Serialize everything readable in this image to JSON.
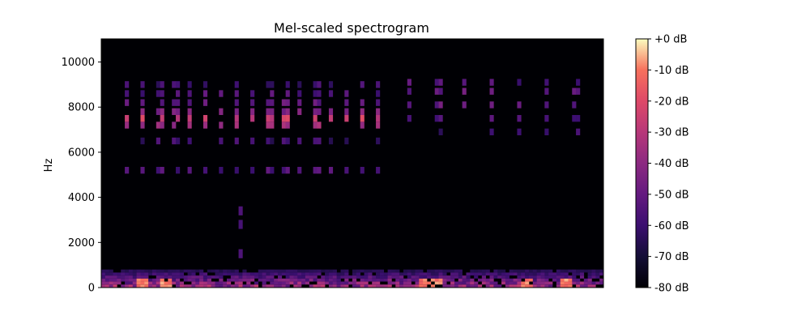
{
  "chart_data": {
    "type": "heatmap",
    "title": "Mel-scaled spectrogram",
    "xlabel": "",
    "ylabel": "Hz",
    "ylim": [
      0,
      11025
    ],
    "y_ticks": [
      0,
      2000,
      4000,
      6000,
      8000,
      10000
    ],
    "y_tick_labels": [
      "0",
      "2000",
      "4000",
      "6000",
      "8000",
      "10000"
    ],
    "x_ticks": [],
    "colormap": "magma",
    "colorbar": {
      "range": [
        -80,
        0
      ],
      "ticks": [
        0,
        -10,
        -20,
        -30,
        -40,
        -50,
        -60,
        -70,
        -80
      ],
      "tick_labels": [
        "+0 dB",
        "-10 dB",
        "-20 dB",
        "-30 dB",
        "-40 dB",
        "-50 dB",
        "-60 dB",
        "-70 dB",
        "-80 dB"
      ]
    },
    "spectrogram": {
      "time_frames": 128,
      "background_db": -80,
      "low_band": {
        "freq_min": 0,
        "freq_max": 800,
        "db_min": -70,
        "db_max": -5
      },
      "bursts": [
        {
          "frame_start": 6,
          "frame_end": 70,
          "frame_step": 4,
          "freqs": [
            5200,
            6500,
            7200,
            7500,
            7800,
            8200,
            8600,
            9000
          ],
          "db": [
            -55,
            -60,
            -35,
            -25,
            -45,
            -50,
            -55,
            -60
          ]
        },
        {
          "frame_start": 78,
          "frame_end": 120,
          "frame_step": 7,
          "freqs": [
            6900,
            7500,
            8100,
            8700,
            9100
          ],
          "db": [
            -60,
            -55,
            -50,
            -50,
            -55
          ]
        }
      ],
      "tail_lines": [
        {
          "frame": 35,
          "freqs": [
            3400,
            2800,
            1500
          ]
        }
      ],
      "hot_low_frames": [
        10,
        16,
        82,
        85,
        108,
        118
      ]
    }
  }
}
